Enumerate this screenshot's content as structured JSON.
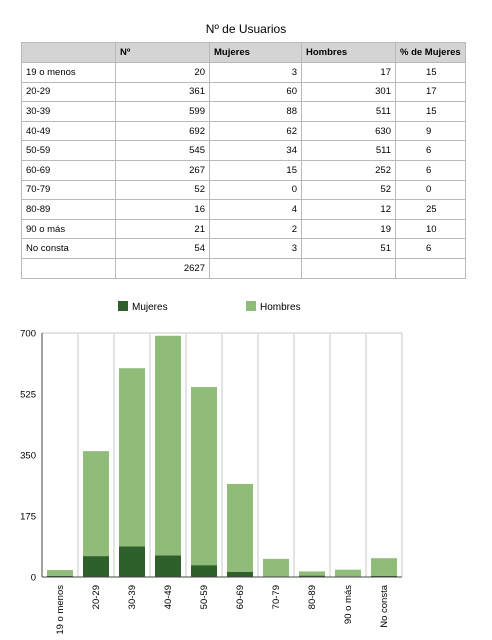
{
  "table": {
    "title": "Nº de Usuarios",
    "headers": [
      "",
      "Nº",
      "Mujeres",
      "Hombres",
      "% de Mujeres"
    ],
    "rows": [
      [
        "19  o menos",
        "20",
        "3",
        "17",
        "15"
      ],
      [
        "20-29",
        "361",
        "60",
        "301",
        "17"
      ],
      [
        "30-39",
        "599",
        "88",
        "511",
        "15"
      ],
      [
        "40-49",
        "692",
        "62",
        "630",
        "9"
      ],
      [
        "50-59",
        "545",
        "34",
        "511",
        "6"
      ],
      [
        "60-69",
        "267",
        "15",
        "252",
        "6"
      ],
      [
        "70-79",
        "52",
        "0",
        "52",
        "0"
      ],
      [
        "80-89",
        "16",
        "4",
        "12",
        "25"
      ],
      [
        "90 o más",
        "21",
        "2",
        "19",
        "10"
      ],
      [
        "No consta",
        "54",
        "3",
        "51",
        "6"
      ]
    ],
    "total": "2627"
  },
  "chart_data": {
    "type": "bar",
    "stacked": true,
    "categories": [
      "19  o menos",
      "20-29",
      "30-39",
      "40-49",
      "50-59",
      "60-69",
      "70-79",
      "80-89",
      "90 o más",
      "No consta"
    ],
    "series": [
      {
        "name": "Mujeres",
        "values": [
          3,
          60,
          88,
          62,
          34,
          15,
          0,
          4,
          2,
          3
        ],
        "color": "#2f5f2a"
      },
      {
        "name": "Hombres",
        "values": [
          17,
          301,
          511,
          630,
          511,
          252,
          52,
          12,
          19,
          51
        ],
        "color": "#8fbc78"
      }
    ],
    "yticks": [
      "0",
      "175",
      "350",
      "525",
      "700"
    ],
    "ylim": [
      0,
      700
    ],
    "grid": true,
    "legend": "top-center"
  },
  "colors": {
    "header_bg": "#d4d4d4",
    "border": "#b9b9b9",
    "axis": "#444444",
    "grid": "#c8c8c8"
  }
}
